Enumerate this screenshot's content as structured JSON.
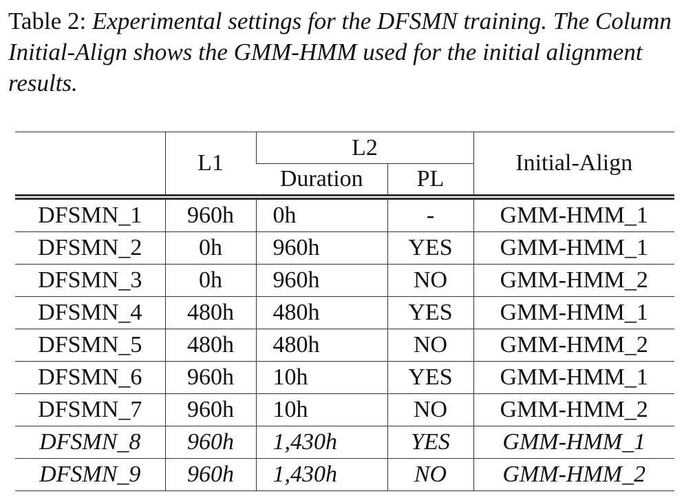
{
  "caption": {
    "label": "Table 2:",
    "text": "Experimental settings for the DFSMN training. The Column Initial-Align shows the GMM-HMM used for the initial alignment results."
  },
  "table": {
    "header": {
      "l1": "L1",
      "l2": "L2",
      "duration": "Duration",
      "pl": "PL",
      "initial_align": "Initial-Align"
    },
    "rows": [
      [
        "DFSMN_1",
        "960h",
        "0h",
        "-",
        "GMM-HMM_1"
      ],
      [
        "DFSMN_2",
        "0h",
        "960h",
        "YES",
        "GMM-HMM_1"
      ],
      [
        "DFSMN_3",
        "0h",
        "960h",
        "NO",
        "GMM-HMM_2"
      ],
      [
        "DFSMN_4",
        "480h",
        "480h",
        "YES",
        "GMM-HMM_1"
      ],
      [
        "DFSMN_5",
        "480h",
        "480h",
        "NO",
        "GMM-HMM_2"
      ],
      [
        "DFSMN_6",
        "960h",
        "10h",
        "YES",
        "GMM-HMM_1"
      ],
      [
        "DFSMN_7",
        "960h",
        "10h",
        "NO",
        "GMM-HMM_2"
      ],
      [
        "DFSMN_8",
        "960h",
        "1,430h",
        "YES",
        "GMM-HMM_1"
      ],
      [
        "DFSMN_9",
        "960h",
        "1,430h",
        "NO",
        "GMM-HMM_2"
      ]
    ]
  }
}
